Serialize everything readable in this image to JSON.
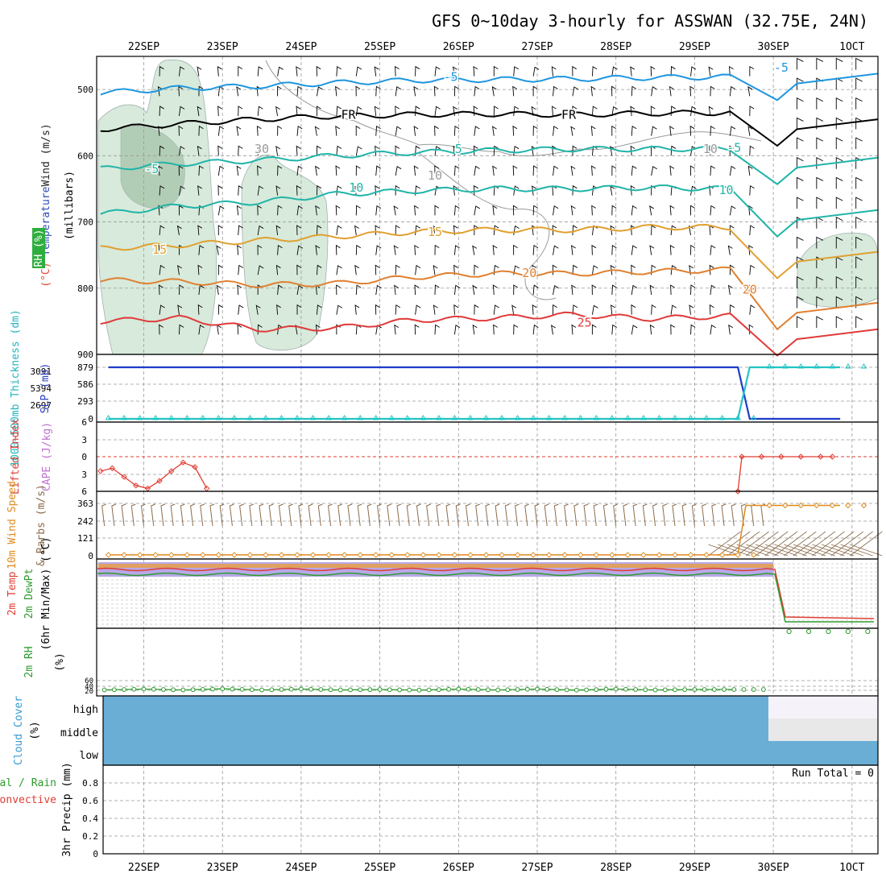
{
  "title": "GFS 0~10day 3-hourly for ASSWAN (32.75E, 24N)",
  "dates": [
    "22SEP",
    "23SEP",
    "24SEP",
    "25SEP",
    "26SEP",
    "27SEP",
    "28SEP",
    "29SEP",
    "30SEP",
    "1OCT"
  ],
  "colors": {
    "frame": "#000000",
    "grid": "#999999",
    "cloud": "#6aaed6",
    "rh": "#d7eadb",
    "lifted": "#e03c31",
    "slp": "#1e3cc8",
    "thick": "#22c4c4",
    "wind10": "#e08a1e",
    "barb": "#8b6b4a",
    "rh2m": "#2e9b2e"
  },
  "chart_data": [
    {
      "id": "upper-air",
      "type": "contour",
      "ylabel_segments": [
        {
          "text": "Wind (m/s)",
          "color": "#222222"
        },
        {
          "text": " Temperature",
          "color": "#2a4ab8"
        },
        {
          "text": " (°C)",
          "color": "#e04a3a"
        }
      ],
      "ylabel2": "(millibars)",
      "rh_label": "RH (%)",
      "y_ticks": [
        500,
        600,
        700,
        800,
        900
      ],
      "ylim": [
        450,
        900
      ],
      "contour_labels": [
        {
          "text": "-5",
          "t": 3.9,
          "p": 481,
          "color": "#1e96e0"
        },
        {
          "text": "-5",
          "t": 8.1,
          "p": 467,
          "color": "#1e96e0"
        },
        {
          "text": "FR",
          "t": 2.6,
          "p": 538,
          "color": "#000000"
        },
        {
          "text": "FR",
          "t": 5.4,
          "p": 538,
          "color": "#000000"
        },
        {
          "text": "-5",
          "t": 0.1,
          "p": 620,
          "color": "#20b4a8"
        },
        {
          "text": "5",
          "t": 4.0,
          "p": 590,
          "color": "#20b4a8"
        },
        {
          "text": "-5",
          "t": 7.5,
          "p": 588,
          "color": "#20b4a8"
        },
        {
          "text": "10",
          "t": 2.7,
          "p": 648,
          "color": "#20b4a8"
        },
        {
          "text": "10",
          "t": 7.4,
          "p": 652,
          "color": "#20b4a8"
        },
        {
          "text": "15",
          "t": 0.2,
          "p": 742,
          "color": "#e0a030"
        },
        {
          "text": "15",
          "t": 3.7,
          "p": 715,
          "color": "#e0a030"
        },
        {
          "text": "20",
          "t": 4.9,
          "p": 777,
          "color": "#e08030"
        },
        {
          "text": "20",
          "t": 7.7,
          "p": 802,
          "color": "#e08030"
        },
        {
          "text": "25",
          "t": 5.6,
          "p": 852,
          "color": "#e03a3a"
        },
        {
          "text": "30",
          "t": 1.5,
          "p": 590,
          "color": "#9a9a9a"
        },
        {
          "text": "10",
          "t": 3.7,
          "p": 630,
          "color": "#9a9a9a"
        },
        {
          "text": "10",
          "t": 7.2,
          "p": 590,
          "color": "#9a9a9a"
        }
      ],
      "isotherms": [
        {
          "name": "-5C",
          "color": "#1e96e0",
          "p": [
            505,
            498,
            495,
            490,
            486,
            485,
            484,
            482,
            481,
            480,
            476
          ]
        },
        {
          "name": "freezing",
          "color": "#000000",
          "p": [
            560,
            552,
            545,
            540,
            538,
            537,
            538,
            536,
            535,
            534,
            545
          ]
        },
        {
          "name": "5C",
          "color": "#20b4a8",
          "p": [
            620,
            612,
            607,
            600,
            595,
            592,
            590,
            590,
            589,
            588,
            603
          ]
        },
        {
          "name": "10C",
          "color": "#20b4a8",
          "p": [
            688,
            676,
            670,
            658,
            653,
            650,
            650,
            648,
            650,
            652,
            682
          ]
        },
        {
          "name": "15C",
          "color": "#e0a030",
          "p": [
            740,
            735,
            728,
            722,
            715,
            712,
            712,
            708,
            708,
            705,
            745
          ]
        },
        {
          "name": "20C",
          "color": "#e08030",
          "p": [
            788,
            790,
            795,
            793,
            783,
            778,
            778,
            775,
            772,
            785,
            822
          ]
        },
        {
          "name": "25C",
          "color": "#e03a3a",
          "p": [
            850,
            845,
            862,
            860,
            848,
            845,
            840,
            846,
            842,
            840,
            862
          ]
        }
      ]
    },
    {
      "id": "slp-thickness",
      "type": "line",
      "ylabel": "SLP (mb)",
      "ylabel2": "1000~500mb Thickness (dm)",
      "y_ticks_right": [
        "879",
        "586",
        "293",
        "0"
      ],
      "y_ticks_left": [
        "3091",
        "5394",
        "2697"
      ],
      "series": [
        {
          "name": "SLP",
          "color": "#1e3cc8",
          "x": [
            0,
            8.0,
            8.15,
            9.3
          ],
          "y": [
            879,
            879,
            0,
            0
          ]
        },
        {
          "name": "Thickness",
          "color": "#22c4c4",
          "x": [
            0,
            8.0,
            8.15,
            9.3
          ],
          "y": [
            0,
            0,
            879,
            879
          ]
        }
      ]
    },
    {
      "id": "stability",
      "type": "line",
      "ylabel": "Lifted Index",
      "ylabel2": "CAPE (J/kg)",
      "y_ticks": [
        "6",
        "3",
        "0",
        "3",
        "6"
      ],
      "ylim": [
        -6,
        6
      ],
      "series": [
        {
          "name": "Lifted Index",
          "color": "#e03c31",
          "x": [
            0,
            0.15,
            0.3,
            0.45,
            0.6,
            0.75,
            0.9,
            1.05,
            1.2,
            1.35
          ],
          "y": [
            2.5,
            2.0,
            3.5,
            5.0,
            5.5,
            4.2,
            2.5,
            1.0,
            1.8,
            5.5
          ]
        },
        {
          "name": "Lifted Index (end)",
          "color": "#e03c31",
          "x": [
            8.1,
            8.15,
            8.4,
            8.65,
            8.9,
            9.15,
            9.3
          ],
          "y": [
            6,
            0,
            0,
            0,
            0,
            0,
            0
          ]
        }
      ]
    },
    {
      "id": "wind-10m",
      "type": "line",
      "ylabel": "10m Wind Speed",
      "ylabel2": "& Barbs (m/s)",
      "y_ticks": [
        "363",
        "242",
        "121",
        "0"
      ],
      "ylim": [
        0,
        363
      ],
      "series": [
        {
          "name": "10m Wind Speed",
          "color": "#e08a1e",
          "x": [
            0,
            8.0,
            8.1,
            9.3
          ],
          "y": [
            6,
            6,
            349,
            349
          ]
        }
      ]
    },
    {
      "id": "temp-2m",
      "type": "line",
      "ylabel": "2m Temp",
      "ylabel2": "2m DewPt",
      "ylabel3": "(6hr Min/Max) (°C)",
      "series": [
        {
          "name": "2m Temp",
          "color": "#e03c31",
          "x": [
            0,
            8.0,
            8.1,
            9.3
          ],
          "y": [
            0.82,
            0.82,
            0.15,
            0.12
          ]
        },
        {
          "name": "2m DewPt",
          "color": "#2e9b2e",
          "x": [
            0,
            8.0,
            8.1,
            9.3
          ],
          "y": [
            0.88,
            0.88,
            0.1,
            0.05
          ]
        }
      ]
    },
    {
      "id": "rh-2m",
      "type": "line",
      "ylabel": "2m RH",
      "ylabel2": "(%)",
      "y_ticks": [
        "60",
        "40",
        "20"
      ],
      "ylim": [
        0,
        100
      ],
      "series": [
        {
          "name": "2m RH",
          "color": "#2e9b2e",
          "x": [
            0,
            0.5,
            1.0,
            1.5,
            2.0,
            2.5,
            3.0,
            3.5,
            4.0,
            4.5,
            5.0,
            5.5,
            6.0,
            6.5,
            7.0,
            7.5,
            8.0
          ],
          "y": [
            20,
            24,
            20,
            25,
            20,
            24,
            20,
            22,
            19,
            24,
            20,
            24,
            19,
            24,
            20,
            22,
            22
          ]
        }
      ]
    },
    {
      "id": "cloud-cover",
      "type": "area",
      "ylabel": "Cloud Cover",
      "ylabel2": "(%)",
      "categories": [
        "high",
        "middle",
        "low"
      ],
      "values_before_30sep": [
        100,
        100,
        100
      ],
      "values_after_30sep": [
        0,
        0,
        100
      ]
    },
    {
      "id": "precip",
      "type": "bar",
      "ylabel": "3hr Precip (mm)",
      "ylabel_left1": "Total / Rain",
      "ylabel_left2": "Convective",
      "y_ticks": [
        "0.8",
        "0.6",
        "0.4",
        "0.2",
        "0"
      ],
      "ylim": [
        0,
        1
      ],
      "values": [],
      "annotation": "Run Total = 0"
    }
  ]
}
